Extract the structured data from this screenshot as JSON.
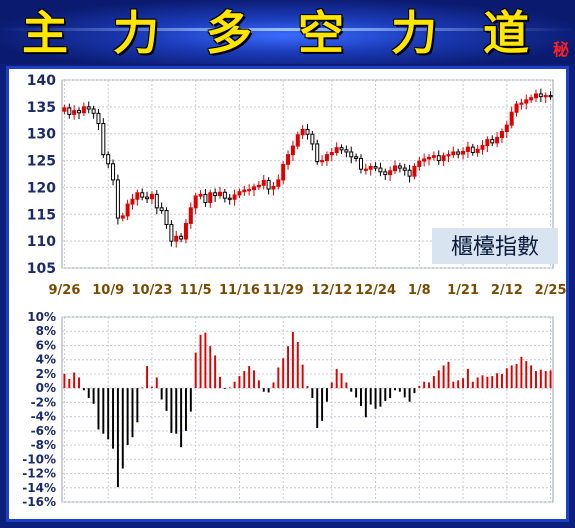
{
  "banner": {
    "title_chars": [
      "主",
      "力",
      "多",
      "空",
      "力",
      "道"
    ],
    "secret_mark": "秘",
    "title_color": "#ffe600"
  },
  "chart_data": [
    {
      "type": "candlestick",
      "label": "櫃檯指數",
      "ylim": [
        105,
        140
      ],
      "yticks": [
        105,
        110,
        115,
        120,
        125,
        130,
        135,
        140
      ],
      "xtick_labels": [
        "9/26",
        "10/9",
        "10/23",
        "11/5",
        "11/16",
        "11/29",
        "12/12",
        "12/24",
        "1/8",
        "1/21",
        "2/12",
        "2/25"
      ],
      "up_color": "#e00000",
      "down_color": "#000000",
      "grid": true,
      "closes": [
        134.8,
        133.6,
        134.3,
        133.9,
        135.0,
        134.6,
        133.8,
        131.9,
        126.1,
        124.4,
        121.4,
        114.3,
        114.7,
        116.9,
        117.8,
        119.0,
        118.2,
        117.9,
        118.7,
        116.2,
        115.7,
        113.1,
        110.0,
        110.9,
        110.4,
        113.3,
        116.2,
        118.4,
        118.7,
        117.2,
        119.0,
        118.5,
        119.1,
        118.0,
        117.8,
        118.6,
        119.2,
        119.5,
        119.6,
        120.1,
        120.4,
        121.3,
        119.7,
        120.2,
        121.4,
        124.3,
        126.1,
        127.7,
        129.8,
        130.8,
        129.9,
        128.1,
        124.8,
        125.0,
        126.1,
        126.5,
        127.4,
        127.0,
        126.6,
        125.7,
        125.4,
        123.4,
        123.4,
        123.9,
        123.6,
        122.9,
        122.4,
        123.1,
        124.0,
        123.6,
        123.2,
        122.1,
        123.9,
        124.9,
        125.3,
        125.6,
        125.9,
        125.0,
        125.9,
        126.1,
        126.6,
        126.2,
        126.7,
        127.5,
        126.5,
        127.1,
        127.8,
        128.9,
        128.3,
        129.3,
        130.4,
        131.6,
        134.0,
        135.5,
        135.7,
        136.3,
        136.7,
        137.4,
        136.9,
        137.1,
        136.9
      ]
    },
    {
      "type": "bar",
      "ylim": [
        -16,
        10
      ],
      "yticks": [
        "10%",
        "8%",
        "6%",
        "4%",
        "2%",
        "0%",
        "-2%",
        "-4%",
        "-6%",
        "-8%",
        "-10%",
        "-12%",
        "-14%",
        "-16%"
      ],
      "xtick_labels": [
        "9/26",
        "10/9",
        "10/23",
        "11/5",
        "11/16",
        "11/29",
        "12/12",
        "12/24",
        "1/8",
        "1/21",
        "2/12",
        "2/25"
      ],
      "pos_color": "#e00000",
      "neg_color": "#000000",
      "grid": true,
      "values": [
        2.0,
        1.3,
        2.2,
        1.5,
        -0.3,
        -1.4,
        -2.2,
        -5.8,
        -6.4,
        -7.2,
        -8.5,
        -13.9,
        -11.3,
        -8.0,
        -6.9,
        -4.8,
        0.1,
        3.1,
        0.2,
        1.5,
        -1.6,
        -3.2,
        -6.3,
        -6.4,
        -8.3,
        -6.0,
        -3.3,
        5.0,
        7.5,
        7.8,
        5.9,
        4.6,
        1.6,
        -0.1,
        0.1,
        0.9,
        1.7,
        2.4,
        3.1,
        2.5,
        1.1,
        -0.5,
        -0.6,
        0.8,
        2.9,
        4.2,
        5.9,
        7.9,
        6.5,
        3.3,
        0.3,
        -1.4,
        -5.6,
        -4.6,
        -1.9,
        0.8,
        2.7,
        2.1,
        0.8,
        -0.5,
        -1.3,
        -2.5,
        -4.1,
        -2.3,
        -2.9,
        -2.6,
        -1.8,
        -1.4,
        -0.3,
        -0.5,
        -1.3,
        -1.9,
        -0.7,
        0.3,
        0.9,
        0.8,
        1.7,
        2.5,
        3.2,
        3.7,
        0.9,
        1.1,
        1.4,
        2.7,
        0.9,
        1.5,
        1.8,
        1.6,
        1.7,
        2.1,
        2.0,
        2.8,
        3.2,
        3.4,
        4.4,
        3.8,
        3.2,
        2.4,
        2.6,
        2.4,
        2.5
      ]
    }
  ]
}
